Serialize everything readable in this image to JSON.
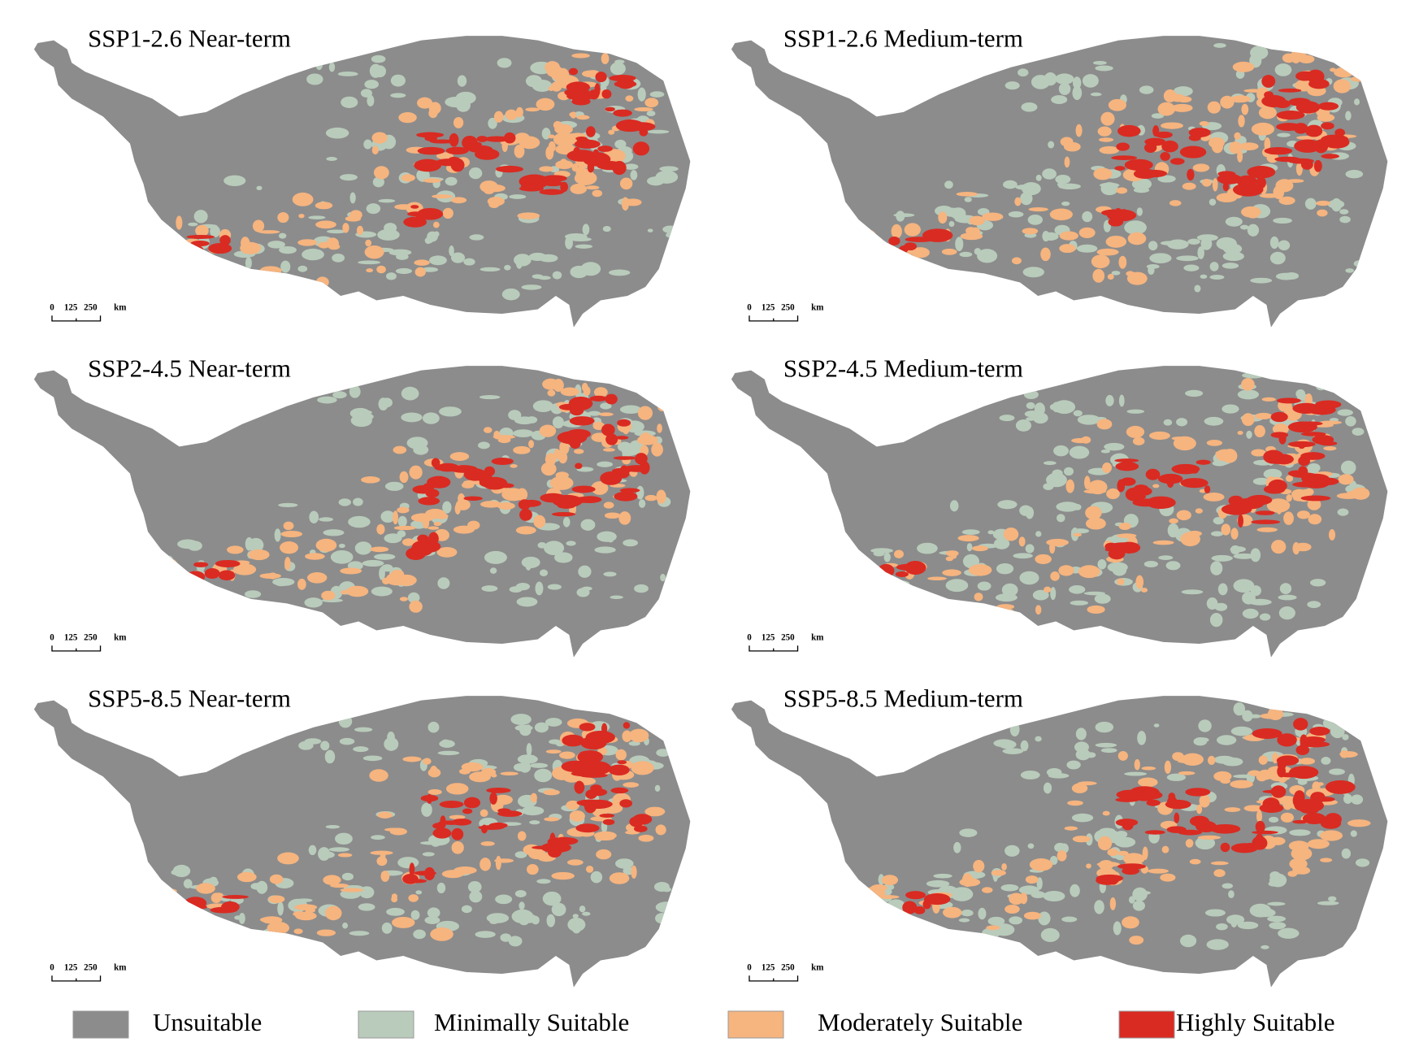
{
  "panels": [
    {
      "title": "SSP1-2.6 Near-term",
      "scale_bar": [
        "0",
        "125",
        "250",
        "km"
      ]
    },
    {
      "title": "SSP1-2.6 Medium-term",
      "scale_bar": [
        "0",
        "125",
        "250",
        "km"
      ]
    },
    {
      "title": "SSP2-4.5 Near-term",
      "scale_bar": [
        "0",
        "125",
        "250",
        "km"
      ]
    },
    {
      "title": "SSP2-4.5 Medium-term",
      "scale_bar": [
        "0",
        "125",
        "250",
        "km"
      ]
    },
    {
      "title": "SSP5-8.5 Near-term",
      "scale_bar": [
        "0",
        "125",
        "250",
        "km"
      ]
    },
    {
      "title": "SSP5-8.5 Medium-term",
      "scale_bar": [
        "0",
        "125",
        "250",
        "km"
      ]
    }
  ],
  "legend": {
    "items": [
      {
        "label": "Unsuitable",
        "color": "#8c8c8c"
      },
      {
        "label": "Minimally Suitable",
        "color": "#b9cbbb"
      },
      {
        "label": "Moderately Suitable",
        "color": "#f6b47f"
      },
      {
        "label": "Highly Suitable",
        "color": "#d92b22"
      }
    ]
  }
}
